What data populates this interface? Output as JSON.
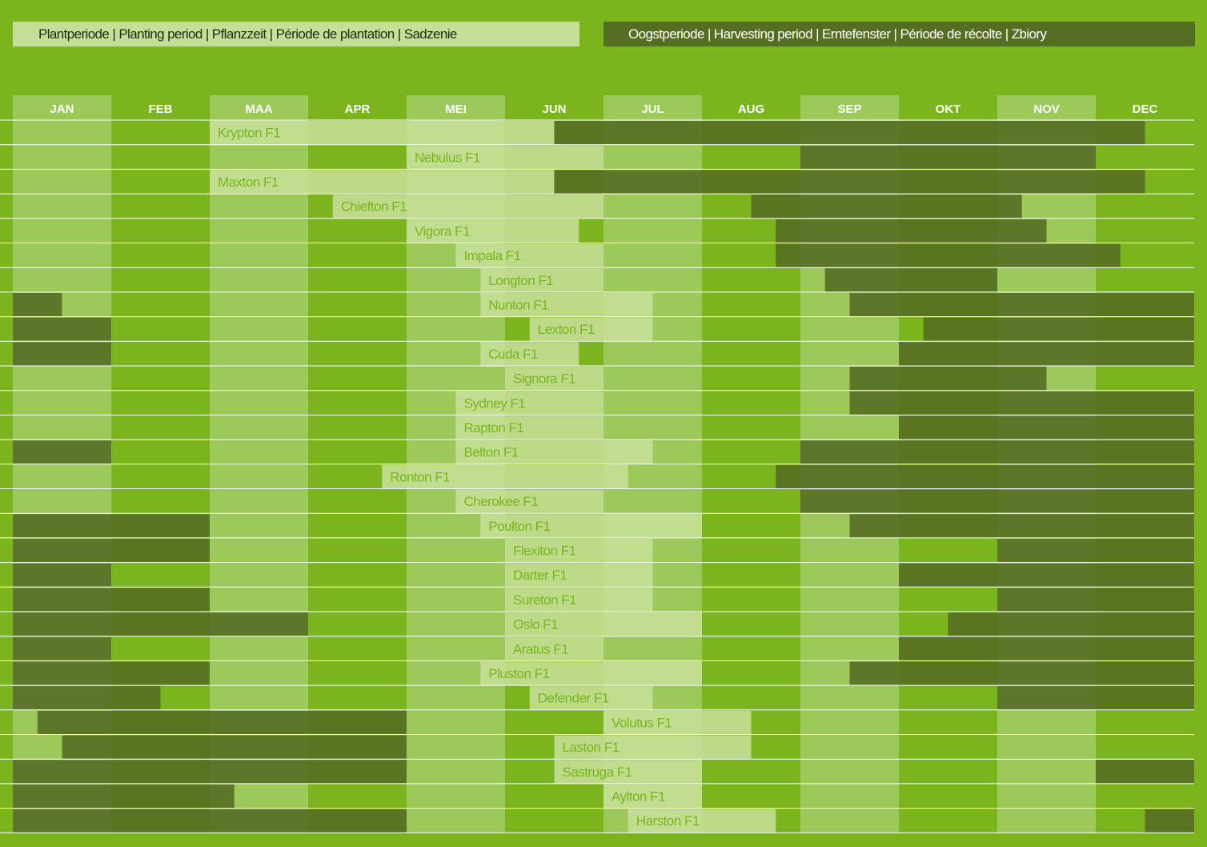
{
  "legend": {
    "planting": "Plantperiode | Planting period | Pflanzzeit | Période de plantation | Sadzenie",
    "harvesting": "Oogstperiode | Harvesting period | Erntefenster | Période de récolte | Zbiory"
  },
  "colors": {
    "background": "#7ab51d",
    "month_shade": "#9cc95a",
    "planting": "#c5df97",
    "harvesting": "#566e22",
    "row_line": "#ffffff"
  },
  "chart_data": {
    "type": "gantt",
    "title": "",
    "months": [
      "JAN",
      "FEB",
      "MAA",
      "APR",
      "MEI",
      "JUN",
      "JUL",
      "AUG",
      "SEP",
      "OKT",
      "NOV",
      "DEC"
    ],
    "shaded_months": [
      "JAN",
      "MAA",
      "MEI",
      "JUL",
      "SEP",
      "NOV"
    ],
    "units": "months (0 = start of JAN, 12 = end of DEC)",
    "varieties": [
      {
        "name": "Krypton F1",
        "planting": [
          [
            2.0,
            5.5
          ]
        ],
        "harvesting": [
          [
            5.5,
            11.5
          ]
        ]
      },
      {
        "name": "Nebulus F1",
        "planting": [
          [
            4.0,
            6.0
          ]
        ],
        "harvesting": [
          [
            8.0,
            11.0
          ]
        ]
      },
      {
        "name": "Maxton F1",
        "planting": [
          [
            2.0,
            5.5
          ]
        ],
        "harvesting": [
          [
            5.5,
            11.5
          ]
        ]
      },
      {
        "name": "Chiefton F1",
        "planting": [
          [
            3.25,
            6.0
          ]
        ],
        "harvesting": [
          [
            7.5,
            10.25
          ]
        ]
      },
      {
        "name": "Vigora F1",
        "planting": [
          [
            4.0,
            5.75
          ]
        ],
        "harvesting": [
          [
            7.75,
            10.5
          ]
        ]
      },
      {
        "name": "Impala F1",
        "planting": [
          [
            4.5,
            6.0
          ]
        ],
        "harvesting": [
          [
            7.75,
            11.25
          ]
        ]
      },
      {
        "name": "Longton F1",
        "planting": [
          [
            4.75,
            6.0
          ]
        ],
        "harvesting": [
          [
            8.25,
            10.0
          ]
        ]
      },
      {
        "name": "Nunton F1",
        "planting": [
          [
            4.75,
            6.5
          ]
        ],
        "harvesting": [
          [
            0.0,
            0.5
          ],
          [
            8.5,
            12.0
          ]
        ]
      },
      {
        "name": "Lexton F1",
        "planting": [
          [
            5.25,
            6.5
          ]
        ],
        "harvesting": [
          [
            0.0,
            1.0
          ],
          [
            9.25,
            12.0
          ]
        ]
      },
      {
        "name": "Cuda F1",
        "planting": [
          [
            4.75,
            5.75
          ]
        ],
        "harvesting": [
          [
            0.0,
            1.0
          ],
          [
            9.0,
            12.0
          ]
        ]
      },
      {
        "name": "Signora F1",
        "planting": [
          [
            5.0,
            6.0
          ]
        ],
        "harvesting": [
          [
            8.5,
            10.5
          ]
        ]
      },
      {
        "name": "Sydney F1",
        "planting": [
          [
            4.5,
            6.0
          ]
        ],
        "harvesting": [
          [
            8.5,
            12.0
          ]
        ]
      },
      {
        "name": "Rapton F1",
        "planting": [
          [
            4.5,
            6.0
          ]
        ],
        "harvesting": [
          [
            9.0,
            12.0
          ]
        ]
      },
      {
        "name": "Belton F1",
        "planting": [
          [
            4.5,
            6.5
          ]
        ],
        "harvesting": [
          [
            0.0,
            1.0
          ],
          [
            8.0,
            12.0
          ]
        ]
      },
      {
        "name": "Ronton F1",
        "planting": [
          [
            3.75,
            6.25
          ]
        ],
        "harvesting": [
          [
            7.75,
            12.0
          ]
        ]
      },
      {
        "name": "Cherokee F1",
        "planting": [
          [
            4.5,
            6.0
          ]
        ],
        "harvesting": [
          [
            8.0,
            12.0
          ]
        ]
      },
      {
        "name": "Poulton F1",
        "planting": [
          [
            4.75,
            7.0
          ]
        ],
        "harvesting": [
          [
            0.0,
            2.0
          ],
          [
            8.5,
            12.0
          ]
        ]
      },
      {
        "name": "Flexiton F1",
        "planting": [
          [
            5.0,
            6.5
          ]
        ],
        "harvesting": [
          [
            0.0,
            2.0
          ],
          [
            10.0,
            12.0
          ]
        ]
      },
      {
        "name": "Darter F1",
        "planting": [
          [
            5.0,
            6.5
          ]
        ],
        "harvesting": [
          [
            0.0,
            1.0
          ],
          [
            9.0,
            12.0
          ]
        ]
      },
      {
        "name": "Sureton F1",
        "planting": [
          [
            5.0,
            6.5
          ]
        ],
        "harvesting": [
          [
            0.0,
            2.0
          ],
          [
            10.0,
            12.0
          ]
        ]
      },
      {
        "name": "Oslo F1",
        "planting": [
          [
            5.0,
            7.0
          ]
        ],
        "harvesting": [
          [
            0.0,
            3.0
          ],
          [
            9.5,
            12.0
          ]
        ]
      },
      {
        "name": "Aratus F1",
        "planting": [
          [
            5.0,
            6.0
          ]
        ],
        "harvesting": [
          [
            0.0,
            1.0
          ],
          [
            9.0,
            12.0
          ]
        ]
      },
      {
        "name": "Pluston F1",
        "planting": [
          [
            4.75,
            7.0
          ]
        ],
        "harvesting": [
          [
            0.0,
            2.0
          ],
          [
            8.5,
            12.0
          ]
        ]
      },
      {
        "name": "Defender F1",
        "planting": [
          [
            5.25,
            6.5
          ]
        ],
        "harvesting": [
          [
            0.0,
            1.5
          ],
          [
            10.0,
            12.0
          ]
        ]
      },
      {
        "name": "Volutus F1",
        "planting": [
          [
            6.0,
            7.5
          ]
        ],
        "harvesting": [
          [
            0.25,
            4.0
          ]
        ]
      },
      {
        "name": "Laston F1",
        "planting": [
          [
            5.5,
            7.5
          ]
        ],
        "harvesting": [
          [
            0.5,
            4.0
          ]
        ]
      },
      {
        "name": "Sastruga F1",
        "planting": [
          [
            5.5,
            7.0
          ]
        ],
        "harvesting": [
          [
            0.0,
            4.0
          ],
          [
            11.0,
            12.0
          ]
        ]
      },
      {
        "name": "Aylton F1",
        "planting": [
          [
            6.0,
            7.0
          ]
        ],
        "harvesting": [
          [
            0.0,
            2.25
          ]
        ]
      },
      {
        "name": "Harston F1",
        "planting": [
          [
            6.25,
            7.75
          ]
        ],
        "harvesting": [
          [
            0.0,
            4.0
          ],
          [
            11.5,
            12.0
          ]
        ]
      }
    ]
  }
}
